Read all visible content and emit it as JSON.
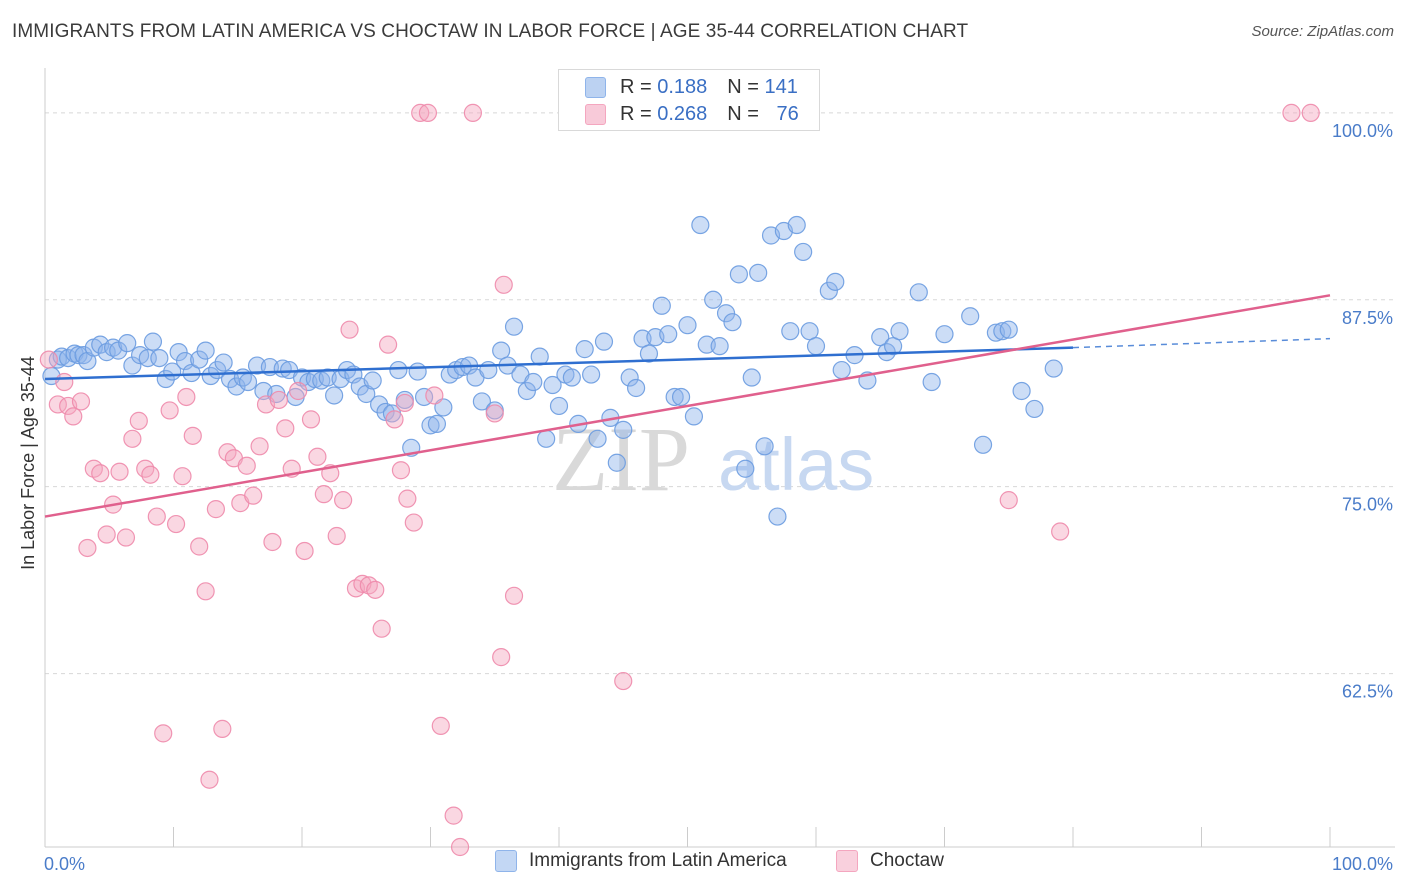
{
  "header": {
    "title": "IMMIGRANTS FROM LATIN AMERICA VS CHOCTAW IN LABOR FORCE | AGE 35-44 CORRELATION CHART",
    "source": "Source: ZipAtlas.com"
  },
  "watermark": {
    "zip": "ZIP",
    "atlas": "atlas"
  },
  "legend": {
    "rows": [
      {
        "r_label": "R =",
        "r_value": "0.188",
        "n_label": "N =",
        "n_value": "141",
        "color": "#8fb4ea"
      },
      {
        "r_label": "R =",
        "r_value": "0.268",
        "n_label": "N =",
        "n_value": "76",
        "color": "#f4a6bf"
      }
    ]
  },
  "bottom_legend": {
    "items": [
      {
        "label": "Immigrants from Latin America",
        "color": "#8fb4ea"
      },
      {
        "label": "Choctaw",
        "color": "#f4a6bf"
      }
    ]
  },
  "chart_data": {
    "type": "scatter",
    "ylabel": "In Labor Force | Age 35-44",
    "x_tick_labels": [
      "0.0%",
      "100.0%"
    ],
    "y_tick_labels": [
      "100.0%",
      "87.5%",
      "75.0%",
      "62.5%"
    ],
    "y_ticks": [
      100,
      87.5,
      75,
      62.5
    ],
    "xlim": [
      0,
      100
    ],
    "ylim": [
      50.9,
      102.2
    ],
    "grid": true,
    "legend_position": "top-center",
    "series": [
      {
        "name": "Immigrants from Latin America",
        "color": "#8fb4ea",
        "stroke": "#6a9be0",
        "trend": {
          "x0": 0,
          "y0": 82.2,
          "x1": 80,
          "y1": 84.3,
          "dash_to": 100,
          "dash_y": 84.9,
          "color": "#2f6fd0"
        },
        "points": [
          [
            0.5,
            82.4
          ],
          [
            1,
            83.5
          ],
          [
            1.3,
            83.7
          ],
          [
            1.8,
            83.6
          ],
          [
            2.3,
            83.9
          ],
          [
            2.6,
            83.8
          ],
          [
            3,
            83.8
          ],
          [
            3.3,
            83.4
          ],
          [
            3.8,
            84.3
          ],
          [
            4.3,
            84.5
          ],
          [
            4.8,
            84.0
          ],
          [
            5.3,
            84.3
          ],
          [
            5.7,
            84.1
          ],
          [
            6.4,
            84.6
          ],
          [
            6.8,
            83.1
          ],
          [
            7.4,
            83.8
          ],
          [
            8.0,
            83.6
          ],
          [
            8.4,
            84.7
          ],
          [
            8.9,
            83.6
          ],
          [
            9.4,
            82.2
          ],
          [
            9.9,
            82.7
          ],
          [
            10.4,
            84.0
          ],
          [
            10.9,
            83.4
          ],
          [
            11.4,
            82.6
          ],
          [
            12.0,
            83.5
          ],
          [
            12.5,
            84.1
          ],
          [
            12.9,
            82.4
          ],
          [
            13.4,
            82.8
          ],
          [
            13.9,
            83.3
          ],
          [
            14.4,
            82.2
          ],
          [
            14.9,
            81.7
          ],
          [
            15.4,
            82.3
          ],
          [
            15.8,
            82.0
          ],
          [
            16.5,
            83.1
          ],
          [
            17.0,
            81.4
          ],
          [
            17.5,
            83.0
          ],
          [
            18.0,
            81.2
          ],
          [
            18.5,
            82.9
          ],
          [
            19.0,
            82.8
          ],
          [
            19.5,
            81.0
          ],
          [
            20.0,
            82.3
          ],
          [
            20.5,
            82.0
          ],
          [
            21.0,
            82.2
          ],
          [
            21.5,
            82.1
          ],
          [
            22.0,
            82.3
          ],
          [
            22.5,
            81.1
          ],
          [
            23.0,
            82.2
          ],
          [
            23.5,
            82.8
          ],
          [
            24.0,
            82.5
          ],
          [
            24.5,
            81.7
          ],
          [
            25.0,
            81.2
          ],
          [
            25.5,
            82.1
          ],
          [
            26.0,
            80.5
          ],
          [
            26.5,
            80.0
          ],
          [
            27.0,
            79.9
          ],
          [
            27.5,
            82.8
          ],
          [
            28.0,
            80.8
          ],
          [
            28.5,
            77.6
          ],
          [
            29.0,
            82.7
          ],
          [
            29.5,
            81.0
          ],
          [
            30.0,
            79.1
          ],
          [
            30.5,
            79.2
          ],
          [
            31.0,
            80.3
          ],
          [
            31.5,
            82.5
          ],
          [
            32.0,
            82.8
          ],
          [
            32.5,
            83.0
          ],
          [
            33.0,
            83.1
          ],
          [
            33.5,
            82.3
          ],
          [
            34.0,
            80.7
          ],
          [
            34.5,
            82.8
          ],
          [
            35.0,
            80.1
          ],
          [
            35.5,
            84.1
          ],
          [
            36.0,
            83.1
          ],
          [
            36.5,
            85.7
          ],
          [
            37.0,
            82.5
          ],
          [
            37.5,
            81.4
          ],
          [
            38.0,
            82.0
          ],
          [
            38.5,
            83.7
          ],
          [
            39.0,
            78.2
          ],
          [
            39.5,
            81.8
          ],
          [
            40.0,
            80.4
          ],
          [
            40.5,
            82.5
          ],
          [
            41.0,
            82.3
          ],
          [
            41.5,
            79.2
          ],
          [
            42.0,
            84.2
          ],
          [
            42.5,
            82.5
          ],
          [
            43.0,
            78.2
          ],
          [
            43.5,
            84.7
          ],
          [
            44.0,
            79.6
          ],
          [
            44.5,
            76.6
          ],
          [
            45.0,
            78.8
          ],
          [
            45.5,
            82.3
          ],
          [
            46.0,
            81.6
          ],
          [
            46.5,
            84.9
          ],
          [
            47.0,
            83.9
          ],
          [
            47.5,
            85.0
          ],
          [
            48.0,
            87.1
          ],
          [
            48.5,
            85.2
          ],
          [
            49.0,
            81.0
          ],
          [
            49.5,
            81.0
          ],
          [
            50.0,
            85.8
          ],
          [
            50.5,
            79.7
          ],
          [
            51.0,
            92.5
          ],
          [
            51.5,
            84.5
          ],
          [
            52.0,
            87.5
          ],
          [
            52.5,
            84.4
          ],
          [
            53.0,
            86.6
          ],
          [
            53.5,
            86.0
          ],
          [
            54.0,
            89.2
          ],
          [
            54.5,
            76.2
          ],
          [
            55.0,
            82.3
          ],
          [
            55.5,
            89.3
          ],
          [
            56.0,
            77.7
          ],
          [
            56.5,
            91.8
          ],
          [
            57.0,
            73.0
          ],
          [
            57.5,
            92.1
          ],
          [
            58.0,
            85.4
          ],
          [
            58.5,
            92.5
          ],
          [
            59.0,
            90.7
          ],
          [
            59.5,
            85.4
          ],
          [
            60.0,
            84.4
          ],
          [
            61.0,
            88.1
          ],
          [
            61.5,
            88.7
          ],
          [
            62.0,
            82.8
          ],
          [
            63.0,
            83.8
          ],
          [
            64.0,
            82.1
          ],
          [
            65.0,
            85.0
          ],
          [
            65.5,
            84.0
          ],
          [
            66.0,
            84.4
          ],
          [
            66.5,
            85.4
          ],
          [
            68.0,
            88.0
          ],
          [
            69.0,
            82.0
          ],
          [
            70.0,
            85.2
          ],
          [
            72.0,
            86.4
          ],
          [
            73.0,
            77.8
          ],
          [
            74.0,
            85.3
          ],
          [
            74.5,
            85.4
          ],
          [
            75.0,
            85.5
          ],
          [
            76.0,
            81.4
          ],
          [
            77.0,
            80.2
          ],
          [
            78.5,
            82.9
          ]
        ]
      },
      {
        "name": "Choctaw",
        "color": "#f4a6bf",
        "stroke": "#ee8aab",
        "trend": {
          "x0": 0,
          "y0": 73.0,
          "x1": 100,
          "y1": 87.8,
          "color": "#e0608d"
        },
        "points": [
          [
            0.3,
            83.5
          ],
          [
            1.0,
            80.5
          ],
          [
            1.5,
            82.0
          ],
          [
            1.8,
            80.4
          ],
          [
            2.2,
            79.7
          ],
          [
            2.8,
            80.7
          ],
          [
            3.3,
            70.9
          ],
          [
            3.8,
            76.2
          ],
          [
            4.3,
            75.9
          ],
          [
            4.8,
            71.8
          ],
          [
            5.3,
            73.8
          ],
          [
            5.8,
            76.0
          ],
          [
            6.3,
            71.6
          ],
          [
            6.8,
            78.2
          ],
          [
            7.3,
            79.4
          ],
          [
            7.8,
            76.2
          ],
          [
            8.2,
            75.8
          ],
          [
            8.7,
            73.0
          ],
          [
            9.2,
            58.5
          ],
          [
            9.7,
            80.1
          ],
          [
            10.2,
            72.5
          ],
          [
            10.7,
            75.7
          ],
          [
            11.0,
            81.0
          ],
          [
            11.5,
            78.4
          ],
          [
            12.0,
            71.0
          ],
          [
            12.5,
            68.0
          ],
          [
            12.8,
            55.4
          ],
          [
            13.3,
            73.5
          ],
          [
            13.8,
            58.8
          ],
          [
            14.2,
            77.3
          ],
          [
            14.7,
            76.9
          ],
          [
            15.2,
            73.9
          ],
          [
            15.7,
            76.4
          ],
          [
            16.2,
            74.4
          ],
          [
            16.7,
            77.7
          ],
          [
            17.2,
            80.5
          ],
          [
            17.7,
            71.3
          ],
          [
            18.2,
            80.8
          ],
          [
            18.7,
            78.9
          ],
          [
            19.2,
            76.2
          ],
          [
            19.7,
            81.4
          ],
          [
            20.2,
            70.7
          ],
          [
            20.7,
            79.5
          ],
          [
            21.2,
            77.0
          ],
          [
            21.7,
            74.5
          ],
          [
            22.2,
            75.9
          ],
          [
            22.7,
            71.7
          ],
          [
            23.2,
            74.1
          ],
          [
            23.7,
            85.5
          ],
          [
            24.2,
            68.2
          ],
          [
            24.7,
            68.5
          ],
          [
            25.2,
            68.4
          ],
          [
            25.7,
            68.1
          ],
          [
            26.2,
            65.5
          ],
          [
            26.7,
            84.5
          ],
          [
            27.2,
            79.5
          ],
          [
            27.7,
            76.1
          ],
          [
            28.2,
            74.2
          ],
          [
            28.7,
            72.6
          ],
          [
            29.2,
            100.0
          ],
          [
            29.8,
            100.0
          ],
          [
            30.3,
            81.1
          ],
          [
            30.8,
            59.0
          ],
          [
            31.8,
            53.0
          ],
          [
            32.3,
            50.9
          ],
          [
            33.3,
            100.0
          ],
          [
            35.5,
            63.6
          ],
          [
            36.5,
            67.7
          ],
          [
            35.0,
            79.9
          ],
          [
            35.7,
            88.5
          ],
          [
            45.0,
            62.0
          ],
          [
            75.0,
            74.1
          ],
          [
            79.0,
            72.0
          ],
          [
            97.0,
            100.0
          ],
          [
            98.5,
            100.0
          ],
          [
            28.0,
            80.6
          ]
        ]
      }
    ]
  }
}
